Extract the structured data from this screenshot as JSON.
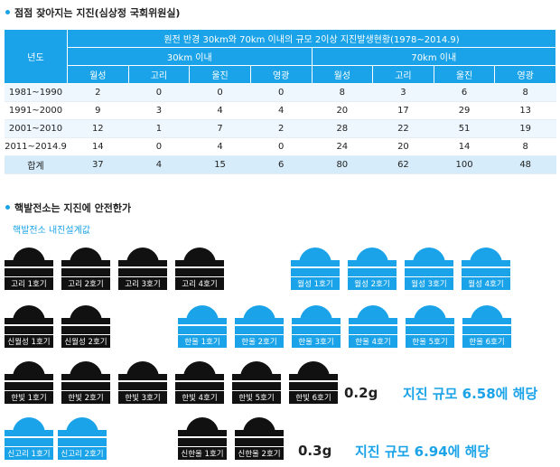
{
  "section1": {
    "title": "점점 잦아지는 지진(심상정 국회위원실)"
  },
  "table": {
    "caption": "원전 반경 30km와 70km 이내의 규모 2이상 지진발생현황(1978~2014.9)",
    "rowhead": "년도",
    "group30": "30km 이내",
    "group70": "70km 이내",
    "cols": [
      "월성",
      "고리",
      "울진",
      "영광",
      "월성",
      "고리",
      "울진",
      "영광"
    ],
    "rows": [
      {
        "label": "1981~1990",
        "vals": [
          "2",
          "0",
          "0",
          "0",
          "8",
          "3",
          "6",
          "8"
        ]
      },
      {
        "label": "1991~2000",
        "vals": [
          "9",
          "3",
          "4",
          "4",
          "20",
          "17",
          "29",
          "13"
        ]
      },
      {
        "label": "2001~2010",
        "vals": [
          "12",
          "1",
          "7",
          "2",
          "28",
          "22",
          "51",
          "19"
        ]
      },
      {
        "label": "2011~2014.9",
        "vals": [
          "14",
          "0",
          "4",
          "0",
          "24",
          "20",
          "14",
          "8"
        ]
      },
      {
        "label": "합계",
        "vals": [
          "37",
          "4",
          "15",
          "6",
          "80",
          "62",
          "100",
          "48"
        ]
      }
    ]
  },
  "section2": {
    "title": "핵발전소는 지진에 안전한가",
    "subtitle": "핵발전소 내진설계값"
  },
  "plants": {
    "kori": [
      "고리 1호기",
      "고리 2호기",
      "고리 3호기",
      "고리 4호기"
    ],
    "wolsong": [
      "월성 1호기",
      "월성 2호기",
      "월성 3호기",
      "월성 4호기"
    ],
    "shinwolsong": [
      "신월성 1호기",
      "신월성 2호기"
    ],
    "hanul": [
      "한울 1호기",
      "한울 2호기",
      "한울 3호기",
      "한울 4호기",
      "한울 5호기",
      "한울 6호기"
    ],
    "hanbit": [
      "한빛 1호기",
      "한빛 2호기",
      "한빛 3호기",
      "한빛 4호기",
      "한빛 5호기",
      "한빛 6호기"
    ],
    "shinkori": [
      "신고리 1호기",
      "신고리 2호기"
    ],
    "shinhanul": [
      "신한울 1호기",
      "신한울 2호기"
    ]
  },
  "design": {
    "g1": "0.2g",
    "scale1": "지진 규모 6.58에 해당",
    "g2": "0.3g",
    "scale2": "지진 규모 6.94에 해당"
  },
  "colors": {
    "accent": "#1aa3e8",
    "dark": "#111111"
  }
}
